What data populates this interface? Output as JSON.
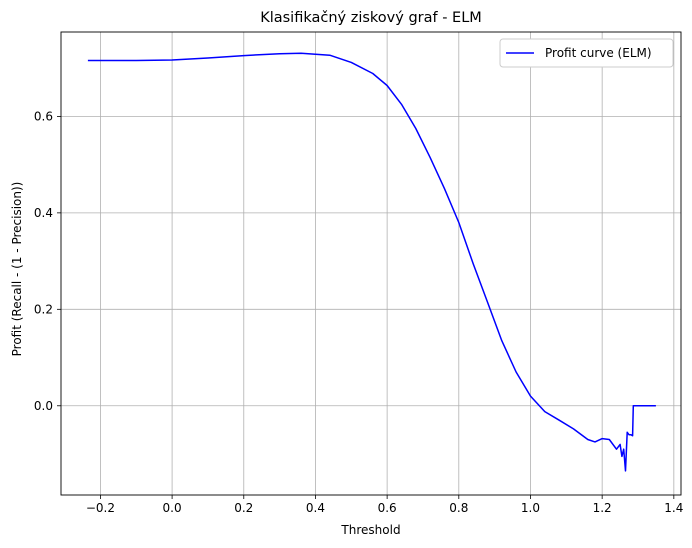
{
  "chart_data": {
    "type": "line",
    "title": "Klasifikačný ziskový graf - ELM",
    "xlabel": "Threshold",
    "ylabel": "Profit (Recall - (1 - Precision))",
    "xlim": [
      -0.31,
      1.42
    ],
    "ylim": [
      -0.185,
      0.775
    ],
    "xticks": [
      -0.2,
      0.0,
      0.2,
      0.4,
      0.6,
      0.8,
      1.0,
      1.2,
      1.4
    ],
    "xtick_labels": [
      "−0.2",
      "0.0",
      "0.2",
      "0.4",
      "0.6",
      "0.8",
      "1.0",
      "1.2",
      "1.4"
    ],
    "yticks": [
      0.0,
      0.2,
      0.4,
      0.6
    ],
    "ytick_labels": [
      "0.0",
      "0.2",
      "0.4",
      "0.6"
    ],
    "grid": true,
    "legend": "top-right",
    "color": "#0000ff",
    "series": [
      {
        "name": "Profit curve (ELM)",
        "x": [
          -0.235,
          -0.1,
          0.0,
          0.1,
          0.2,
          0.3,
          0.36,
          0.44,
          0.5,
          0.56,
          0.6,
          0.64,
          0.68,
          0.72,
          0.76,
          0.8,
          0.84,
          0.88,
          0.92,
          0.96,
          1.0,
          1.04,
          1.08,
          1.12,
          1.16,
          1.18,
          1.2,
          1.22,
          1.24,
          1.25,
          1.255,
          1.26,
          1.265,
          1.27,
          1.275,
          1.28,
          1.285,
          1.287,
          1.3,
          1.35
        ],
        "y": [
          0.716,
          0.716,
          0.717,
          0.721,
          0.726,
          0.73,
          0.731,
          0.727,
          0.712,
          0.689,
          0.664,
          0.625,
          0.575,
          0.515,
          0.45,
          0.38,
          0.295,
          0.215,
          0.135,
          0.07,
          0.02,
          -0.012,
          -0.03,
          -0.048,
          -0.07,
          -0.075,
          -0.068,
          -0.07,
          -0.09,
          -0.08,
          -0.105,
          -0.09,
          -0.135,
          -0.055,
          -0.06,
          -0.06,
          -0.062,
          0.0,
          0.0,
          0.0
        ]
      }
    ]
  }
}
